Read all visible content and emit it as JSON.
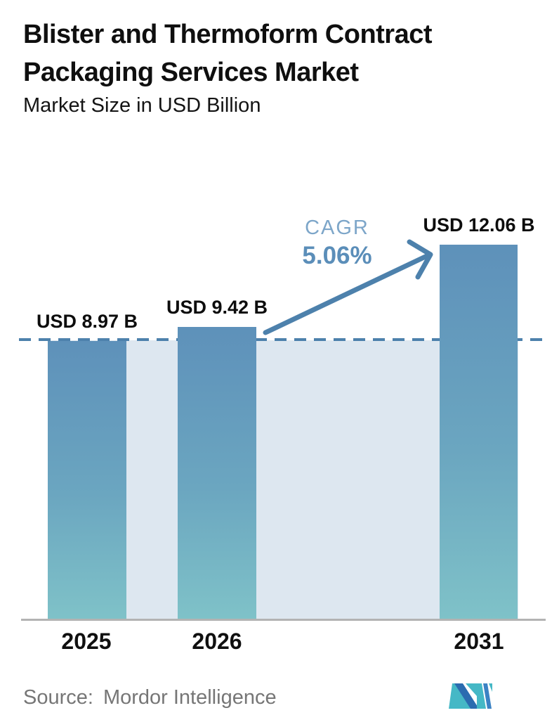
{
  "header": {
    "title_line1": "Blister and Thermoform Contract",
    "title_line2": "Packaging Services Market",
    "subtitle": "Market Size in USD Billion"
  },
  "chart_data": {
    "type": "bar",
    "title": "Blister and Thermoform Contract Packaging Services Market",
    "subtitle": "Market Size in USD Billion",
    "unit": "USD Billion",
    "categories": [
      "2025",
      "2026",
      "2031"
    ],
    "values": [
      8.97,
      9.42,
      12.06
    ],
    "value_labels": [
      "USD 8.97 B",
      "USD 9.42 B",
      "USD 12.06 B"
    ],
    "annotation": {
      "label": "CAGR",
      "value": "5.06%"
    },
    "reference_line": {
      "style": "dashed",
      "at_value": 8.97
    },
    "ylim": [
      0,
      13.5
    ],
    "grid": false,
    "legend": false
  },
  "footer": {
    "source_label": "Source:",
    "source_value": "Mordor Intelligence",
    "logo_name": "mordor-intelligence-logo"
  },
  "colors": {
    "bar_gradient_top": "#5e91ba",
    "bar_gradient_bottom": "#7fc2c8",
    "background_area": "#dde7f0",
    "dashed_line": "#4d81ac",
    "arrow": "#4d81ac",
    "cagr_label": "#7da6c9",
    "cagr_value": "#5b8eb9",
    "axis_line": "#b3b3b3",
    "title_text": "#0f0f0f",
    "source_text": "#767676",
    "logo_teal": "#45b8c6",
    "logo_blue": "#2b6cb0",
    "logo_blue_light": "#3b82c4"
  }
}
